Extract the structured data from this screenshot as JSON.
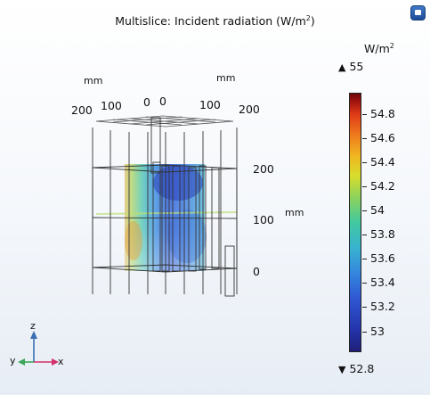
{
  "plot": {
    "title_prefix": "Multislice: Incident radiation (W/m",
    "title_sup": "2",
    "title_suffix": ")",
    "x_unit": "mm",
    "y_unit": "mm",
    "z_unit": "mm",
    "x_ticks": [
      "200",
      "100",
      "0"
    ],
    "y_ticks": [
      "0",
      "100",
      "200"
    ],
    "z_ticks": [
      "200",
      "100",
      "0"
    ]
  },
  "colorbar": {
    "unit_prefix": "W/m",
    "unit_sup": "2",
    "max_label": "55",
    "min_label": "52.8",
    "ticks": [
      "54.8",
      "54.6",
      "54.4",
      "54.2",
      "54",
      "53.8",
      "53.6",
      "53.4",
      "53.2",
      "53"
    ],
    "colors": [
      "#1f1f78",
      "#2f55d2",
      "#38b2cf",
      "#8fd35a",
      "#f0b521",
      "#df3b17",
      "#6e0a0a"
    ]
  },
  "triad": {
    "z": "z",
    "y": "y",
    "x": "x",
    "z_color": "#3a6fb5",
    "x_color": "#d2306a",
    "y_color": "#3aa85a"
  },
  "icons": {
    "corner": "toggle-window-icon"
  }
}
